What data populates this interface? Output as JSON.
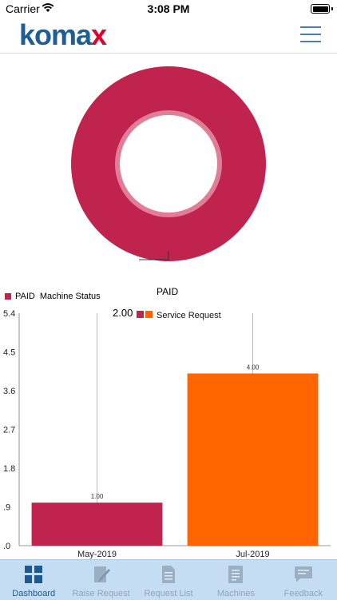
{
  "status_bar": {
    "carrier": "Carrier",
    "time": "3:08 PM"
  },
  "header": {
    "logo_main": "koma",
    "logo_accent": "x"
  },
  "colors": {
    "paid": "#c1234f",
    "service_request": "#ff6600",
    "brand_blue": "#1d5e96",
    "brand_red": "#e0002a",
    "tab_active": "#1e5a8e",
    "tab_inactive": "#8fa5b8"
  },
  "pie": {
    "label": "PAID",
    "value_label": "2.00"
  },
  "bar_legend": {
    "item1": "PAID",
    "item2": "Machine Status"
  },
  "chart_data": [
    {
      "type": "pie",
      "categories": [
        "PAID"
      ],
      "values": [
        2.0
      ],
      "value_labels": [
        "2.00"
      ]
    },
    {
      "type": "bar",
      "categories": [
        "May-2019",
        "Jul-2019"
      ],
      "values": [
        1.0,
        4.0
      ],
      "value_labels": [
        "1.00",
        "4.00"
      ],
      "legend": "Service Request",
      "ylim": [
        0,
        5.4
      ],
      "yticks": [
        ".0",
        ".9",
        "1.8",
        "2.7",
        "3.6",
        "4.5",
        "5.4"
      ]
    }
  ],
  "tabs": [
    {
      "label": "Dashboard",
      "icon": "dashboard-icon",
      "active": true
    },
    {
      "label": "Raise Request",
      "icon": "edit-document-icon",
      "active": false
    },
    {
      "label": "Request List",
      "icon": "list-document-icon",
      "active": false
    },
    {
      "label": "Machines",
      "icon": "machine-list-icon",
      "active": false
    },
    {
      "label": "Feedback",
      "icon": "feedback-icon",
      "active": false
    }
  ]
}
